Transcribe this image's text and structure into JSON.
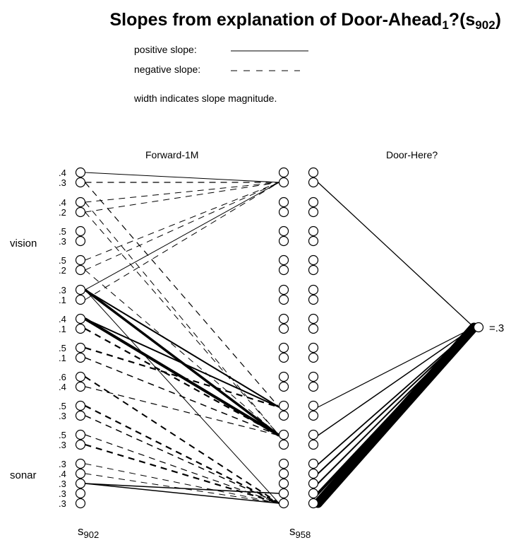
{
  "title": {
    "prefix": "Slopes from explanation of Door-Ahead",
    "sub1": "1",
    "middle": "?(s",
    "sub2": "902",
    "suffix": ")"
  },
  "legend": {
    "positive": "positive slope:",
    "negative": "negative slope:",
    "note": "width indicates slope magnitude."
  },
  "headers": {
    "left": "Forward-1M",
    "right": "Door-Here?"
  },
  "side_labels": {
    "vision": "vision",
    "sonar": "sonar"
  },
  "footer": {
    "left_s": "s",
    "left_sub": "902",
    "right_s": "s",
    "right_sub": "958"
  },
  "output_value": "=.3",
  "input_values": [
    ".4",
    ".3",
    ".4",
    ".2",
    ".5",
    ".3",
    ".5",
    ".2",
    ".3",
    ".1",
    ".4",
    ".1",
    ".5",
    ".1",
    ".6",
    ".4",
    ".5",
    ".3",
    ".5",
    ".3",
    ".3",
    ".4",
    ".3",
    ".3",
    ".3"
  ]
}
